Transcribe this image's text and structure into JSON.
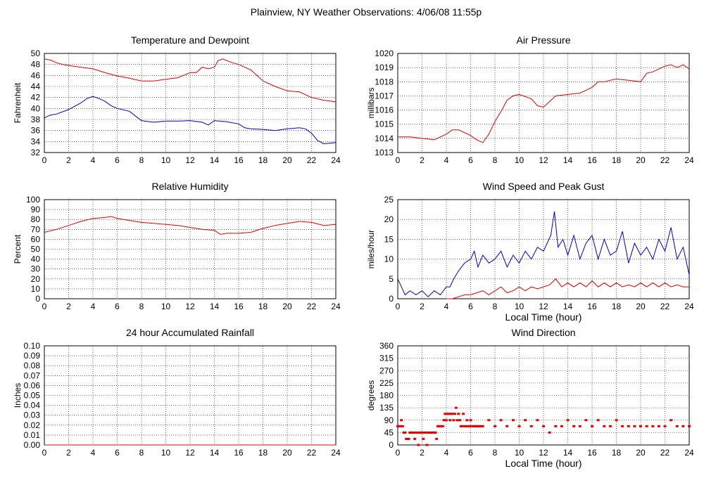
{
  "page_title": "Plainview, NY Weather Observations: 4/06/08 11:55p",
  "colors": {
    "red": "#e00000",
    "blue": "#0000c8",
    "axis": "#000000"
  },
  "chart_data": [
    {
      "id": "temp",
      "type": "line",
      "title": "Temperature and Dewpoint",
      "ylabel": "Fahrenheit",
      "xlabel": "",
      "xlim": [
        0,
        24
      ],
      "ylim": [
        32,
        50
      ],
      "xticks": [
        0,
        2,
        4,
        6,
        8,
        10,
        12,
        14,
        16,
        18,
        20,
        22,
        24
      ],
      "yticks": [
        32,
        34,
        36,
        38,
        40,
        42,
        44,
        46,
        48,
        50
      ],
      "grid": true,
      "series": [
        {
          "color": "#e00000",
          "x": [
            0,
            0.5,
            1,
            1.5,
            2,
            3,
            4,
            5,
            6,
            7,
            8,
            9,
            10,
            11,
            12,
            12.5,
            13,
            13.5,
            14,
            14.3,
            14.7,
            15,
            15.5,
            16,
            17,
            18,
            19,
            20,
            21,
            22,
            23,
            24
          ],
          "y": [
            49,
            48.8,
            48.3,
            48,
            47.8,
            47.5,
            47.2,
            46.5,
            45.9,
            45.5,
            45,
            45,
            45.3,
            45.6,
            46.5,
            46.5,
            47.5,
            47.2,
            47.5,
            48.7,
            49,
            48.7,
            48.3,
            48,
            47,
            45,
            44,
            43.2,
            43,
            42,
            41.5,
            41.2
          ]
        },
        {
          "color": "#0000c8",
          "x": [
            0,
            0.5,
            1,
            2,
            3,
            3.5,
            4,
            4.5,
            5,
            5.5,
            6,
            7,
            8,
            9,
            10,
            11,
            12,
            13,
            13.5,
            14,
            15,
            16,
            16.5,
            17,
            18,
            19,
            20,
            21,
            21.5,
            22,
            22.5,
            23,
            24
          ],
          "y": [
            38.3,
            38.8,
            39,
            39.8,
            41,
            41.8,
            42.2,
            41.8,
            41.3,
            40.5,
            40,
            39.5,
            37.8,
            37.5,
            37.7,
            37.7,
            37.8,
            37.5,
            37,
            37.8,
            37.6,
            37.2,
            36.5,
            36.3,
            36.2,
            36,
            36.3,
            36.5,
            36.3,
            35.5,
            34.2,
            33.6,
            33.8
          ]
        }
      ]
    },
    {
      "id": "press",
      "type": "line",
      "title": "Air Pressure",
      "ylabel": "millibars",
      "xlabel": "",
      "xlim": [
        0,
        24
      ],
      "ylim": [
        1013,
        1020
      ],
      "xticks": [
        0,
        2,
        4,
        6,
        8,
        10,
        12,
        14,
        16,
        18,
        20,
        22,
        24
      ],
      "yticks": [
        1013,
        1014,
        1015,
        1016,
        1017,
        1018,
        1019,
        1020
      ],
      "grid": true,
      "series": [
        {
          "color": "#e00000",
          "x": [
            0,
            1,
            2,
            3,
            3.5,
            4,
            4.5,
            5,
            6,
            6.5,
            7,
            7.5,
            8,
            8.5,
            9,
            9.5,
            10,
            11,
            11.5,
            12,
            13,
            14,
            15,
            16,
            16.5,
            17,
            18,
            19,
            20,
            20.5,
            21,
            22,
            22.5,
            23,
            23.5,
            24
          ],
          "y": [
            1014.1,
            1014.1,
            1014,
            1013.9,
            1014.1,
            1014.3,
            1014.6,
            1014.6,
            1014.2,
            1013.9,
            1013.7,
            1014.3,
            1015.2,
            1015.9,
            1016.7,
            1017,
            1017.1,
            1016.8,
            1016.3,
            1016.2,
            1017,
            1017.1,
            1017.2,
            1017.6,
            1018,
            1018,
            1018.2,
            1018.1,
            1018,
            1018.6,
            1018.7,
            1019.1,
            1019.2,
            1019,
            1019.2,
            1018.9
          ]
        }
      ]
    },
    {
      "id": "rh",
      "type": "line",
      "title": "Relative Humidity",
      "ylabel": "Percent",
      "xlabel": "",
      "xlim": [
        0,
        24
      ],
      "ylim": [
        0,
        100
      ],
      "xticks": [
        0,
        2,
        4,
        6,
        8,
        10,
        12,
        14,
        16,
        18,
        20,
        22,
        24
      ],
      "yticks": [
        0,
        10,
        20,
        30,
        40,
        50,
        60,
        70,
        80,
        90,
        100
      ],
      "grid": true,
      "series": [
        {
          "color": "#e00000",
          "x": [
            0,
            1,
            2,
            3,
            4,
            5,
            5.5,
            6,
            7,
            8,
            9,
            10,
            11,
            12,
            13,
            14,
            14.5,
            15,
            16,
            17,
            18,
            19,
            20,
            21,
            22,
            23,
            24
          ],
          "y": [
            67,
            70,
            74,
            78,
            81,
            82,
            83,
            81,
            79,
            77,
            76,
            75,
            74,
            72,
            70,
            69,
            65,
            66,
            66,
            67,
            71,
            74,
            76,
            78,
            77,
            74,
            75
          ]
        }
      ]
    },
    {
      "id": "wind",
      "type": "line",
      "title": "Wind Speed and Peak Gust",
      "ylabel": "miles/hour",
      "xlabel": "Local Time (hour)",
      "xlim": [
        0,
        24
      ],
      "ylim": [
        0,
        25
      ],
      "xticks": [
        0,
        2,
        4,
        6,
        8,
        10,
        12,
        14,
        16,
        18,
        20,
        22,
        24
      ],
      "yticks": [
        0,
        5,
        10,
        15,
        20,
        25
      ],
      "grid": true,
      "series": [
        {
          "color": "#0000c8",
          "x": [
            0,
            0.3,
            0.6,
            1,
            1.5,
            2,
            2.5,
            3,
            3.5,
            4,
            4.3,
            4.6,
            5,
            5.5,
            6,
            6.3,
            6.6,
            7,
            7.5,
            8,
            8.5,
            9,
            9.5,
            10,
            10.5,
            11,
            11.5,
            12,
            12.3,
            12.6,
            12.9,
            13.2,
            13.6,
            14,
            14.5,
            15,
            15.5,
            16,
            16.5,
            17,
            17.5,
            18,
            18.5,
            19,
            19.5,
            20,
            20.5,
            21,
            21.5,
            22,
            22.5,
            23,
            23.5,
            24
          ],
          "y": [
            5,
            3,
            1,
            2,
            1,
            2,
            0.5,
            2,
            1,
            3,
            3,
            5,
            7,
            9,
            10,
            12,
            8,
            11,
            9,
            10,
            12,
            8,
            11,
            9,
            12,
            10,
            13,
            12,
            14,
            16,
            22,
            13,
            15,
            11,
            16,
            10,
            14,
            16,
            10,
            15,
            11,
            12,
            17,
            9,
            14,
            11,
            13,
            10,
            15,
            12,
            18,
            10,
            13,
            6
          ]
        },
        {
          "color": "#e00000",
          "x": [
            4,
            4.5,
            5,
            5.5,
            6,
            6.5,
            7,
            7.5,
            8,
            8.5,
            9,
            9.5,
            10,
            10.5,
            11,
            11.5,
            12,
            12.5,
            13,
            13.5,
            14,
            14.5,
            15,
            15.5,
            16,
            16.5,
            17,
            17.5,
            18,
            18.5,
            19,
            19.5,
            20,
            20.5,
            21,
            21.5,
            22,
            22.5,
            23,
            23.5,
            24
          ],
          "y": [
            0,
            0,
            0.5,
            1,
            1,
            1.5,
            2,
            1,
            2,
            3,
            1.5,
            2,
            3,
            2,
            3,
            2.5,
            3,
            3.5,
            5,
            3,
            4,
            3,
            4,
            3,
            4.5,
            3,
            4,
            3,
            4,
            3,
            3.5,
            3,
            4,
            3,
            4,
            3,
            4,
            3,
            3.5,
            3,
            3
          ]
        }
      ]
    },
    {
      "id": "rain",
      "type": "line",
      "title": "24 hour Accumulated Rainfall",
      "ylabel": "Inches",
      "xlabel": "",
      "xlim": [
        0,
        24
      ],
      "ylim": [
        0,
        0.1
      ],
      "xticks": [
        0,
        2,
        4,
        6,
        8,
        10,
        12,
        14,
        16,
        18,
        20,
        22,
        24
      ],
      "yticks": [
        "0.00",
        "0.01",
        "0.02",
        "0.03",
        "0.04",
        "0.05",
        "0.06",
        "0.07",
        "0.08",
        "0.09",
        "0.10"
      ],
      "grid": true,
      "series": [
        {
          "color": "#e00000",
          "x": [
            0,
            24
          ],
          "y": [
            0,
            0
          ]
        }
      ]
    },
    {
      "id": "dir",
      "type": "scatter",
      "title": "Wind Direction",
      "ylabel": "degrees",
      "xlabel": "Local Time (hour)",
      "xlim": [
        0,
        24
      ],
      "ylim": [
        0,
        360
      ],
      "xticks": [
        0,
        2,
        4,
        6,
        8,
        10,
        12,
        14,
        16,
        18,
        20,
        22,
        24
      ],
      "yticks": [
        0,
        45,
        90,
        135,
        180,
        225,
        270,
        315,
        360
      ],
      "grid": true,
      "series": [
        {
          "color": "#e00000",
          "x": [
            0,
            0.1,
            0.2,
            0.3,
            0.4,
            0.5,
            0.6,
            0.7,
            0.8,
            0.9,
            1,
            1.1,
            1.2,
            1.3,
            1.4,
            1.5,
            1.6,
            1.7,
            1.8,
            1.9,
            2,
            2.1,
            2.2,
            2.3,
            2.4,
            2.5,
            2.6,
            2.7,
            2.8,
            2.9,
            3,
            3.1,
            3.2,
            3.3,
            3.4,
            3.5,
            3.6,
            3.7,
            3.8,
            3.9,
            4,
            4.1,
            4.2,
            4.3,
            4.4,
            4.5,
            4.6,
            4.7,
            4.8,
            4.9,
            5,
            5.1,
            5.2,
            5.3,
            5.4,
            5.5,
            5.6,
            5.7,
            5.8,
            5.9,
            6,
            6.1,
            6.2,
            6.3,
            6.4,
            6.5,
            6.6,
            6.7,
            6.8,
            6.9,
            7,
            7.5,
            8,
            8.5,
            9,
            9.5,
            10,
            10.5,
            11,
            11.5,
            12,
            12.5,
            13,
            13.5,
            14,
            14.5,
            15,
            15.5,
            16,
            16.5,
            17,
            17.5,
            18,
            18.5,
            19,
            19.5,
            20,
            20.5,
            21,
            21.5,
            22,
            22.5,
            23,
            23.5,
            24
          ],
          "y": [
            68,
            68,
            68,
            90,
            68,
            45,
            45,
            22,
            22,
            22,
            45,
            45,
            45,
            45,
            22,
            45,
            45,
            0,
            45,
            45,
            45,
            22,
            45,
            45,
            0,
            45,
            45,
            45,
            45,
            45,
            45,
            45,
            22,
            68,
            68,
            68,
            68,
            68,
            90,
            113,
            90,
            113,
            113,
            90,
            113,
            113,
            90,
            113,
            135,
            90,
            113,
            90,
            68,
            68,
            113,
            68,
            68,
            90,
            68,
            68,
            90,
            68,
            68,
            68,
            68,
            68,
            68,
            68,
            68,
            68,
            68,
            90,
            68,
            90,
            68,
            90,
            68,
            90,
            68,
            90,
            68,
            45,
            68,
            68,
            90,
            68,
            68,
            90,
            68,
            90,
            68,
            68,
            90,
            68,
            68,
            68,
            68,
            68,
            68,
            68,
            68,
            90,
            68,
            68,
            68
          ]
        }
      ]
    }
  ]
}
